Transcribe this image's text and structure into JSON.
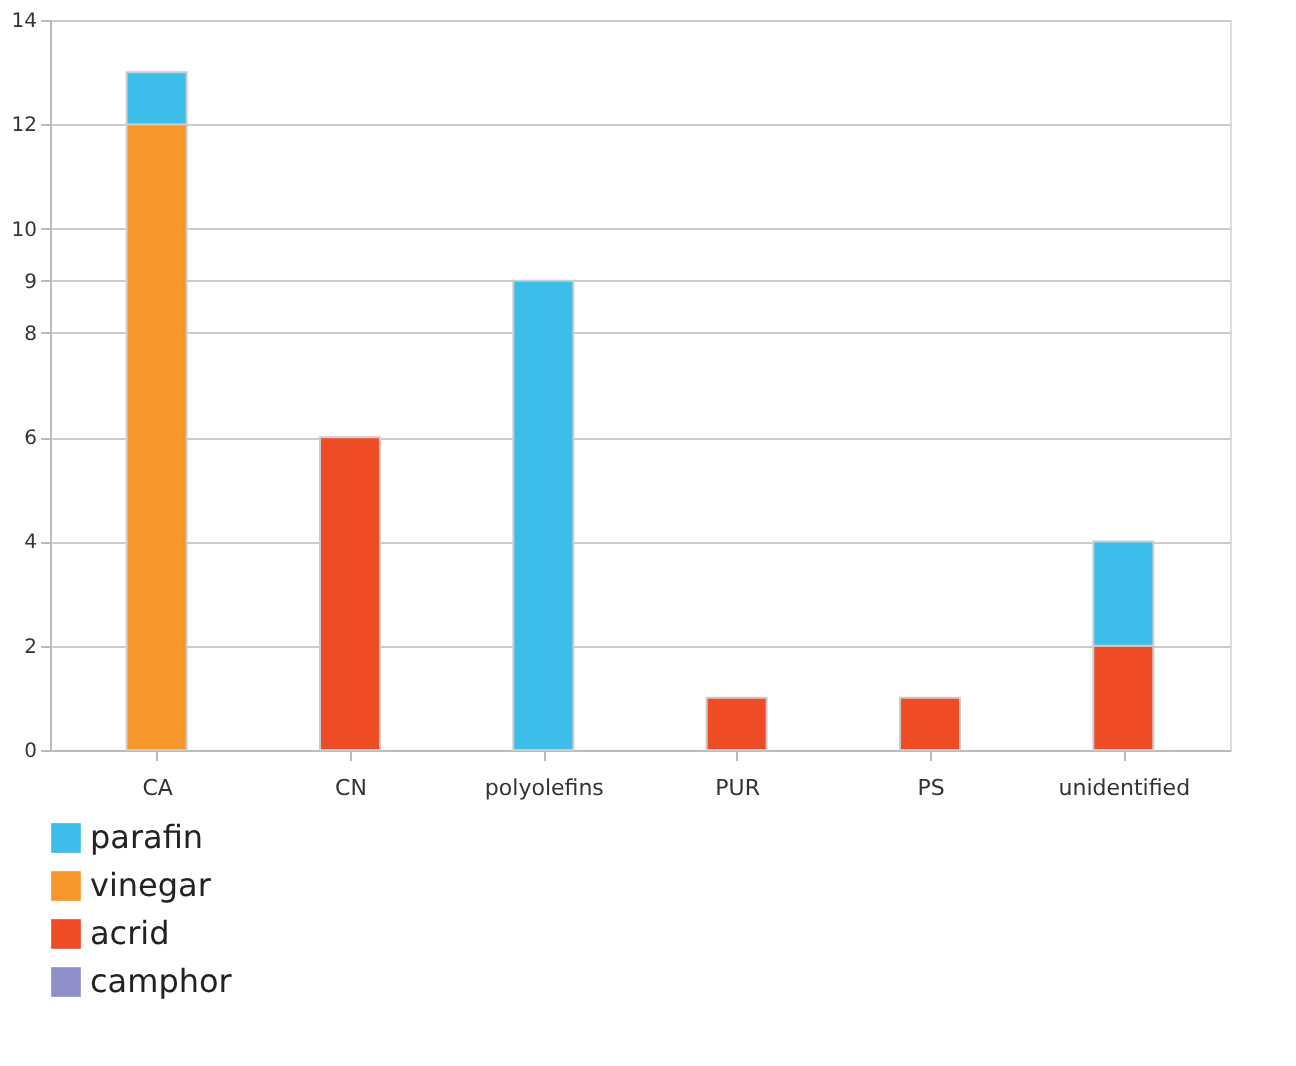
{
  "chart_data": {
    "type": "bar",
    "stacked": true,
    "categories": [
      "CA",
      "CN",
      "polyolefins",
      "PUR",
      "PS",
      "unidentified"
    ],
    "series": [
      {
        "name": "camphor",
        "color": "#8e8fc9",
        "values": [
          null,
          null,
          null,
          null,
          null,
          null
        ]
      },
      {
        "name": "acrid",
        "color": "#ee4c24",
        "values": [
          null,
          6,
          null,
          1,
          1,
          2
        ]
      },
      {
        "name": "vinegar",
        "color": "#f7962b",
        "values": [
          12,
          null,
          null,
          null,
          null,
          null
        ]
      },
      {
        "name": "parafin",
        "color": "#3bbfea",
        "values": [
          1,
          null,
          9,
          null,
          null,
          2
        ]
      }
    ],
    "ylim": [
      0,
      14
    ],
    "yticks": [
      0,
      2,
      4,
      6,
      8,
      9,
      10,
      12,
      14
    ],
    "grid": "y",
    "legend": "bottom left"
  }
}
